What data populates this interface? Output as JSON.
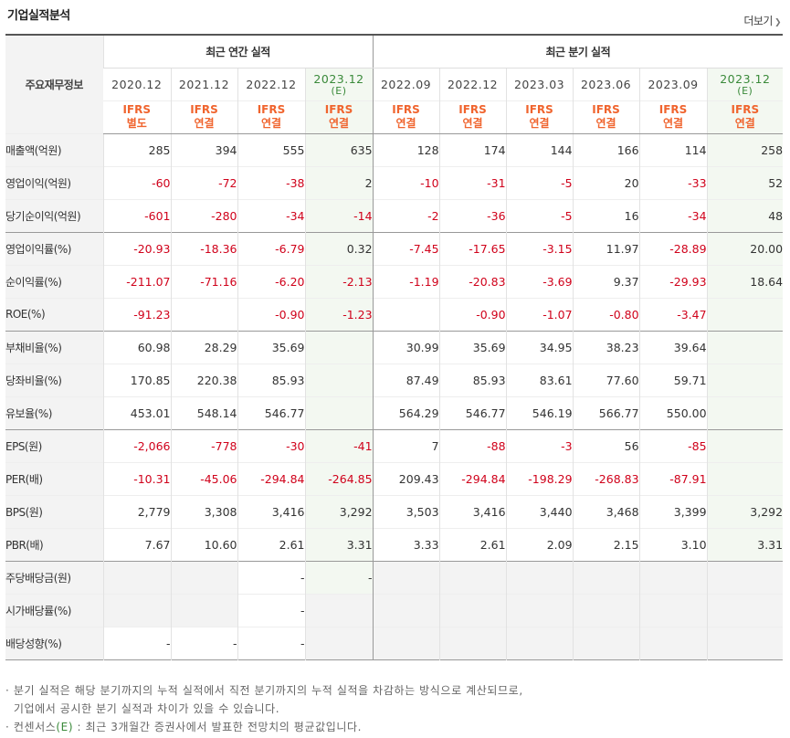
{
  "header": {
    "title": "기업실적분석",
    "more_label": "더보기",
    "more_icon": "chevron-right"
  },
  "table": {
    "corner_label": "주요재무정보",
    "group_annual": "최근 연간 실적",
    "group_quarter": "최근 분기 실적",
    "columns": [
      {
        "period": "2020.12",
        "est": "",
        "s1": "IFRS",
        "s2": "별도"
      },
      {
        "period": "2021.12",
        "est": "",
        "s1": "IFRS",
        "s2": "연결"
      },
      {
        "period": "2022.12",
        "est": "",
        "s1": "IFRS",
        "s2": "연결"
      },
      {
        "period": "2023.12",
        "est": "(E)",
        "s1": "IFRS",
        "s2": "연결"
      },
      {
        "period": "2022.09",
        "est": "",
        "s1": "IFRS",
        "s2": "연결"
      },
      {
        "period": "2022.12",
        "est": "",
        "s1": "IFRS",
        "s2": "연결"
      },
      {
        "period": "2023.03",
        "est": "",
        "s1": "IFRS",
        "s2": "연결"
      },
      {
        "period": "2023.06",
        "est": "",
        "s1": "IFRS",
        "s2": "연결"
      },
      {
        "period": "2023.09",
        "est": "",
        "s1": "IFRS",
        "s2": "연결"
      },
      {
        "period": "2023.12",
        "est": "(E)",
        "s1": "IFRS",
        "s2": "연결"
      }
    ],
    "rows": [
      {
        "label": "매출액(억원)",
        "values": [
          "285",
          "394",
          "555",
          "635",
          "128",
          "174",
          "144",
          "166",
          "114",
          "258"
        ]
      },
      {
        "label": "영업이익(억원)",
        "values": [
          "-60",
          "-72",
          "-38",
          "2",
          "-10",
          "-31",
          "-5",
          "20",
          "-33",
          "52"
        ]
      },
      {
        "label": "당기순이익(억원)",
        "values": [
          "-601",
          "-280",
          "-34",
          "-14",
          "-2",
          "-36",
          "-5",
          "16",
          "-34",
          "48"
        ]
      },
      {
        "label": "영업이익률(%)",
        "values": [
          "-20.93",
          "-18.36",
          "-6.79",
          "0.32",
          "-7.45",
          "-17.65",
          "-3.15",
          "11.97",
          "-28.89",
          "20.00"
        ]
      },
      {
        "label": "순이익률(%)",
        "values": [
          "-211.07",
          "-71.16",
          "-6.20",
          "-2.13",
          "-1.19",
          "-20.83",
          "-3.69",
          "9.37",
          "-29.93",
          "18.64"
        ]
      },
      {
        "label": "ROE(%)",
        "values": [
          "-91.23",
          "",
          "-0.90",
          "-1.23",
          "",
          "-0.90",
          "-1.07",
          "-0.80",
          "-3.47",
          ""
        ]
      },
      {
        "label": "부채비율(%)",
        "values": [
          "60.98",
          "28.29",
          "35.69",
          "",
          "30.99",
          "35.69",
          "34.95",
          "38.23",
          "39.64",
          ""
        ]
      },
      {
        "label": "당좌비율(%)",
        "values": [
          "170.85",
          "220.38",
          "85.93",
          "",
          "87.49",
          "85.93",
          "83.61",
          "77.60",
          "59.71",
          ""
        ]
      },
      {
        "label": "유보율(%)",
        "values": [
          "453.01",
          "548.14",
          "546.77",
          "",
          "564.29",
          "546.77",
          "546.19",
          "566.77",
          "550.00",
          ""
        ]
      },
      {
        "label": "EPS(원)",
        "values": [
          "-2,066",
          "-778",
          "-30",
          "-41",
          "7",
          "-88",
          "-3",
          "56",
          "-85",
          ""
        ]
      },
      {
        "label": "PER(배)",
        "values": [
          "-10.31",
          "-45.06",
          "-294.84",
          "-264.85",
          "209.43",
          "-294.84",
          "-198.29",
          "-268.83",
          "-87.91",
          ""
        ]
      },
      {
        "label": "BPS(원)",
        "values": [
          "2,779",
          "3,308",
          "3,416",
          "3,292",
          "3,503",
          "3,416",
          "3,440",
          "3,468",
          "3,399",
          "3,292"
        ]
      },
      {
        "label": "PBR(배)",
        "values": [
          "7.67",
          "10.60",
          "2.61",
          "3.31",
          "3.33",
          "2.61",
          "2.09",
          "2.15",
          "3.10",
          "3.31"
        ]
      },
      {
        "label": "주당배당금(원)",
        "values": [
          "",
          "",
          "-",
          "-",
          "",
          "",
          "",
          "",
          "",
          ""
        ]
      },
      {
        "label": "시가배당률(%)",
        "values": [
          "",
          "",
          "-",
          "",
          "",
          "",
          "",
          "",
          "",
          ""
        ]
      },
      {
        "label": "배당성향(%)",
        "values": [
          "-",
          "-",
          "-",
          "",
          "",
          "",
          "",
          "",
          "",
          ""
        ]
      }
    ]
  },
  "notes": {
    "line1": "· 분기 실적은 해당 분기까지의 누적 실적에서 직전 분기까지의 누적 실적을 차감하는 방식으로 계산되므로,",
    "line2": "  기업에서 공시한 분기 실적과 차이가 있을 수 있습니다.",
    "line3_prefix": "· 컨센서스",
    "line3_e": "(E)",
    "line3_suffix": " : 최근 3개월간 증권사에서 발표한 전망치의 평균값입니다."
  },
  "colors": {
    "negative": "#d0021b",
    "estimate_text": "#3a8a3a",
    "estimate_bg": "#f3f8f1",
    "standard_text": "#f0642e"
  }
}
